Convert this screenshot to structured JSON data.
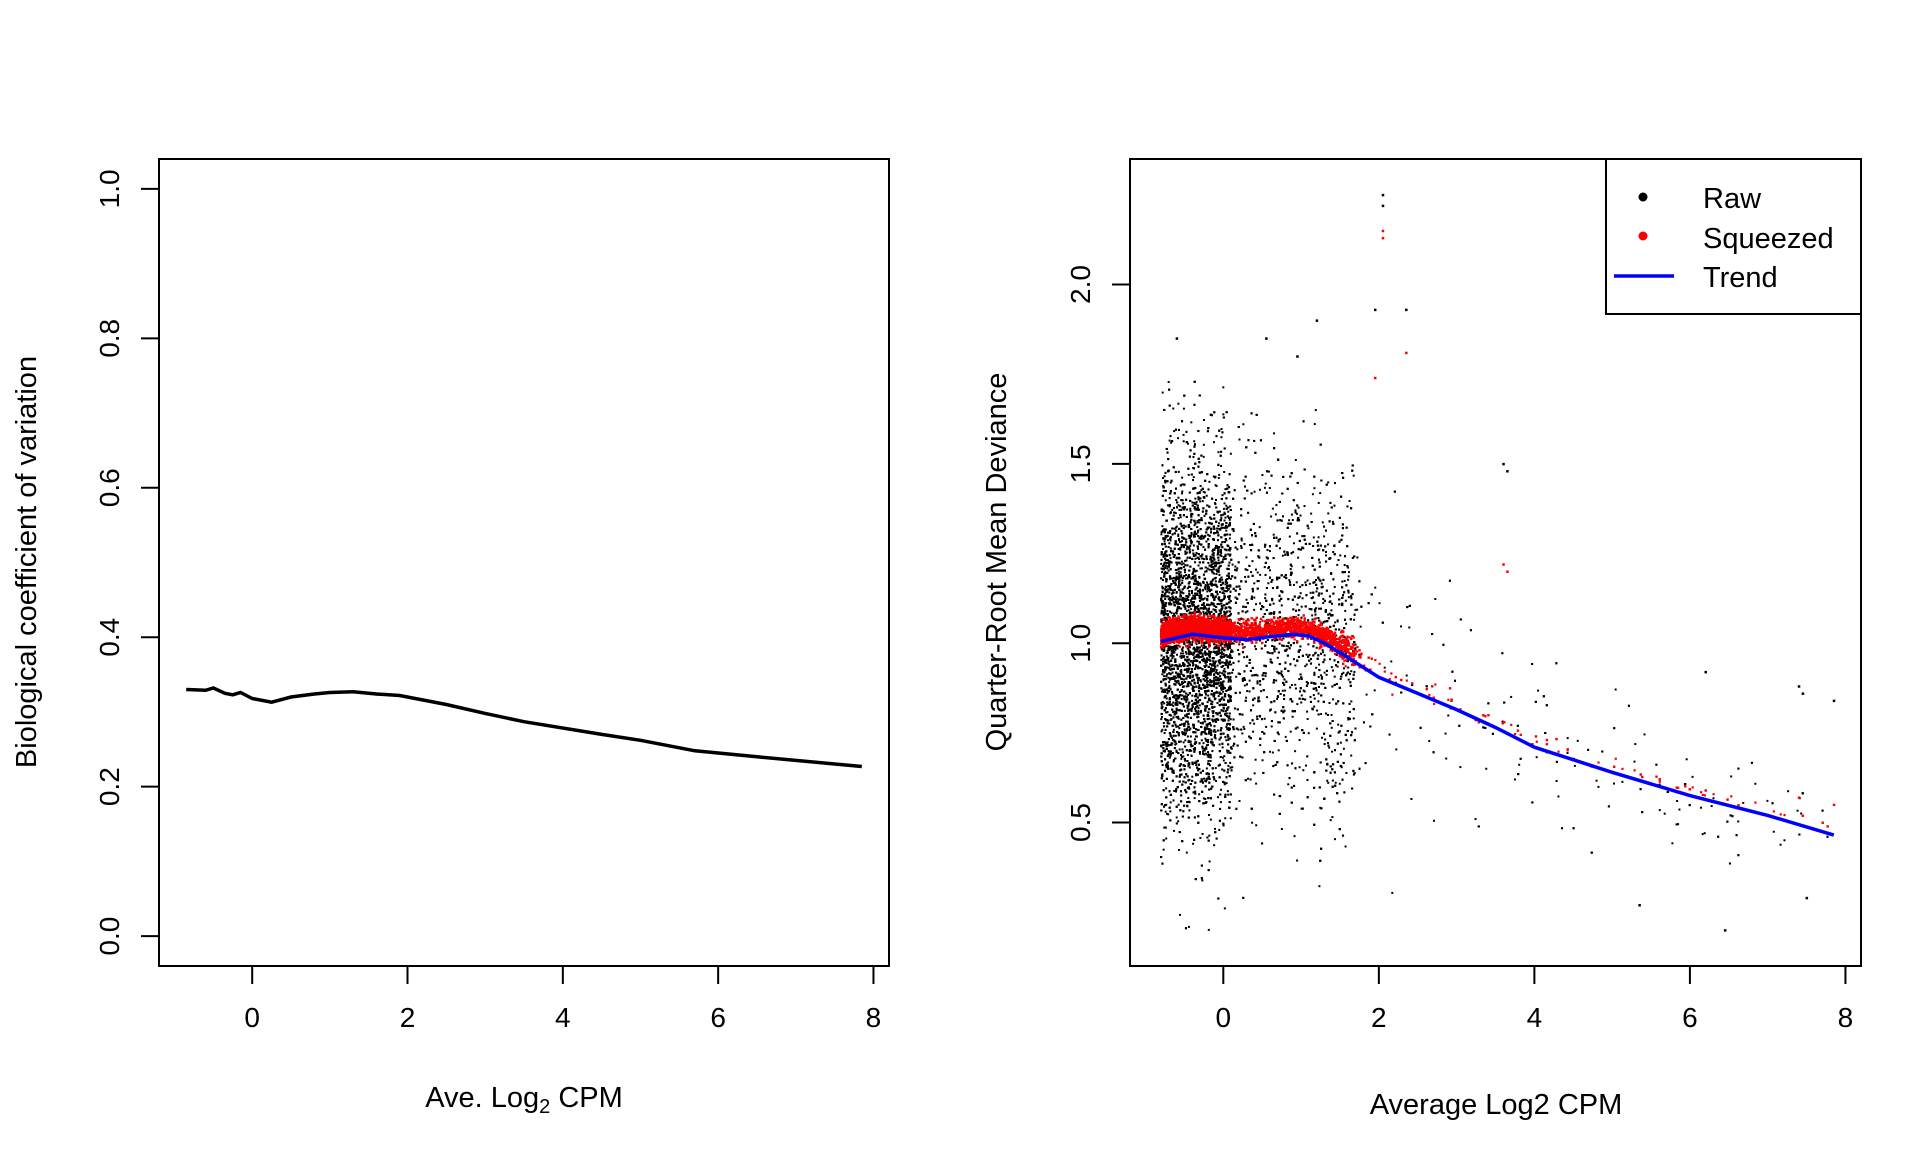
{
  "chart_data": [
    {
      "type": "line",
      "xlabel": "Ave. Log",
      "xlabel_sub": "2",
      "xlabel_suffix": " CPM",
      "ylabel": "Biological coefficient of variation",
      "xlim": [
        -1.2,
        8.2
      ],
      "ylim": [
        -0.04,
        1.04
      ],
      "xticks": [
        "0",
        "2",
        "4",
        "6",
        "8"
      ],
      "yticks": [
        "0.0",
        "0.2",
        "0.4",
        "0.6",
        "0.8",
        "1.0"
      ],
      "grid": false,
      "color": "#000000",
      "x": [
        -0.85,
        -0.6,
        -0.5,
        -0.35,
        -0.25,
        -0.15,
        0,
        0.25,
        0.5,
        0.8,
        1.0,
        1.3,
        1.6,
        1.9,
        2.5,
        3.0,
        3.5,
        4.5,
        5.0,
        5.7,
        6.5,
        7.85
      ],
      "y": [
        0.33,
        0.329,
        0.332,
        0.325,
        0.323,
        0.326,
        0.318,
        0.313,
        0.32,
        0.324,
        0.326,
        0.327,
        0.324,
        0.322,
        0.31,
        0.298,
        0.287,
        0.27,
        0.262,
        0.248,
        0.24,
        0.227
      ]
    },
    {
      "type": "scatter",
      "xlabel": "Average Log2 CPM",
      "ylabel": "Quarter-Root Mean Deviance",
      "xlim": [
        -1.2,
        8.2
      ],
      "ylim": [
        0.1,
        2.35
      ],
      "xticks": [
        "0",
        "2",
        "4",
        "6",
        "8"
      ],
      "yticks": [
        "0.5",
        "1.0",
        "1.5",
        "2.0"
      ],
      "grid": false,
      "legend": {
        "position": "top-right",
        "items": [
          {
            "label": "Raw",
            "color": "#000000",
            "kind": "point"
          },
          {
            "label": "Squeezed",
            "color": "#ff0000",
            "kind": "point"
          },
          {
            "label": "Trend",
            "color": "#0000ff",
            "kind": "line"
          }
        ]
      },
      "trend": {
        "x": [
          -0.8,
          -0.6,
          -0.4,
          -0.2,
          0,
          0.3,
          0.6,
          0.9,
          1.1,
          1.3,
          1.6,
          2.0,
          2.5,
          3.0,
          3.5,
          4.0,
          5.0,
          6.0,
          7.0,
          7.85
        ],
        "y": [
          1.005,
          1.015,
          1.025,
          1.02,
          1.015,
          1.01,
          1.018,
          1.025,
          1.02,
          1.0,
          0.96,
          0.905,
          0.86,
          0.815,
          0.765,
          0.71,
          0.64,
          0.575,
          0.52,
          0.465
        ]
      },
      "raw_outliers": [
        [
          2.05,
          2.25
        ],
        [
          2.05,
          2.22
        ],
        [
          1.95,
          1.93
        ],
        [
          2.35,
          1.93
        ],
        [
          1.2,
          1.9
        ],
        [
          -0.6,
          1.85
        ],
        [
          0.55,
          1.85
        ],
        [
          0.95,
          1.8
        ],
        [
          3.6,
          1.5
        ],
        [
          3.65,
          1.48
        ],
        [
          7.4,
          0.88
        ],
        [
          7.45,
          0.86
        ],
        [
          7.85,
          0.84
        ],
        [
          6.2,
          0.92
        ],
        [
          6.45,
          0.2
        ],
        [
          5.35,
          0.27
        ],
        [
          7.5,
          0.29
        ]
      ],
      "squeezed_outliers": [
        [
          2.05,
          2.15
        ],
        [
          2.05,
          2.13
        ],
        [
          2.35,
          1.81
        ],
        [
          1.95,
          1.74
        ],
        [
          3.6,
          1.22
        ],
        [
          3.65,
          1.2
        ],
        [
          7.4,
          0.57
        ],
        [
          7.85,
          0.55
        ],
        [
          6.2,
          0.59
        ]
      ]
    }
  ]
}
